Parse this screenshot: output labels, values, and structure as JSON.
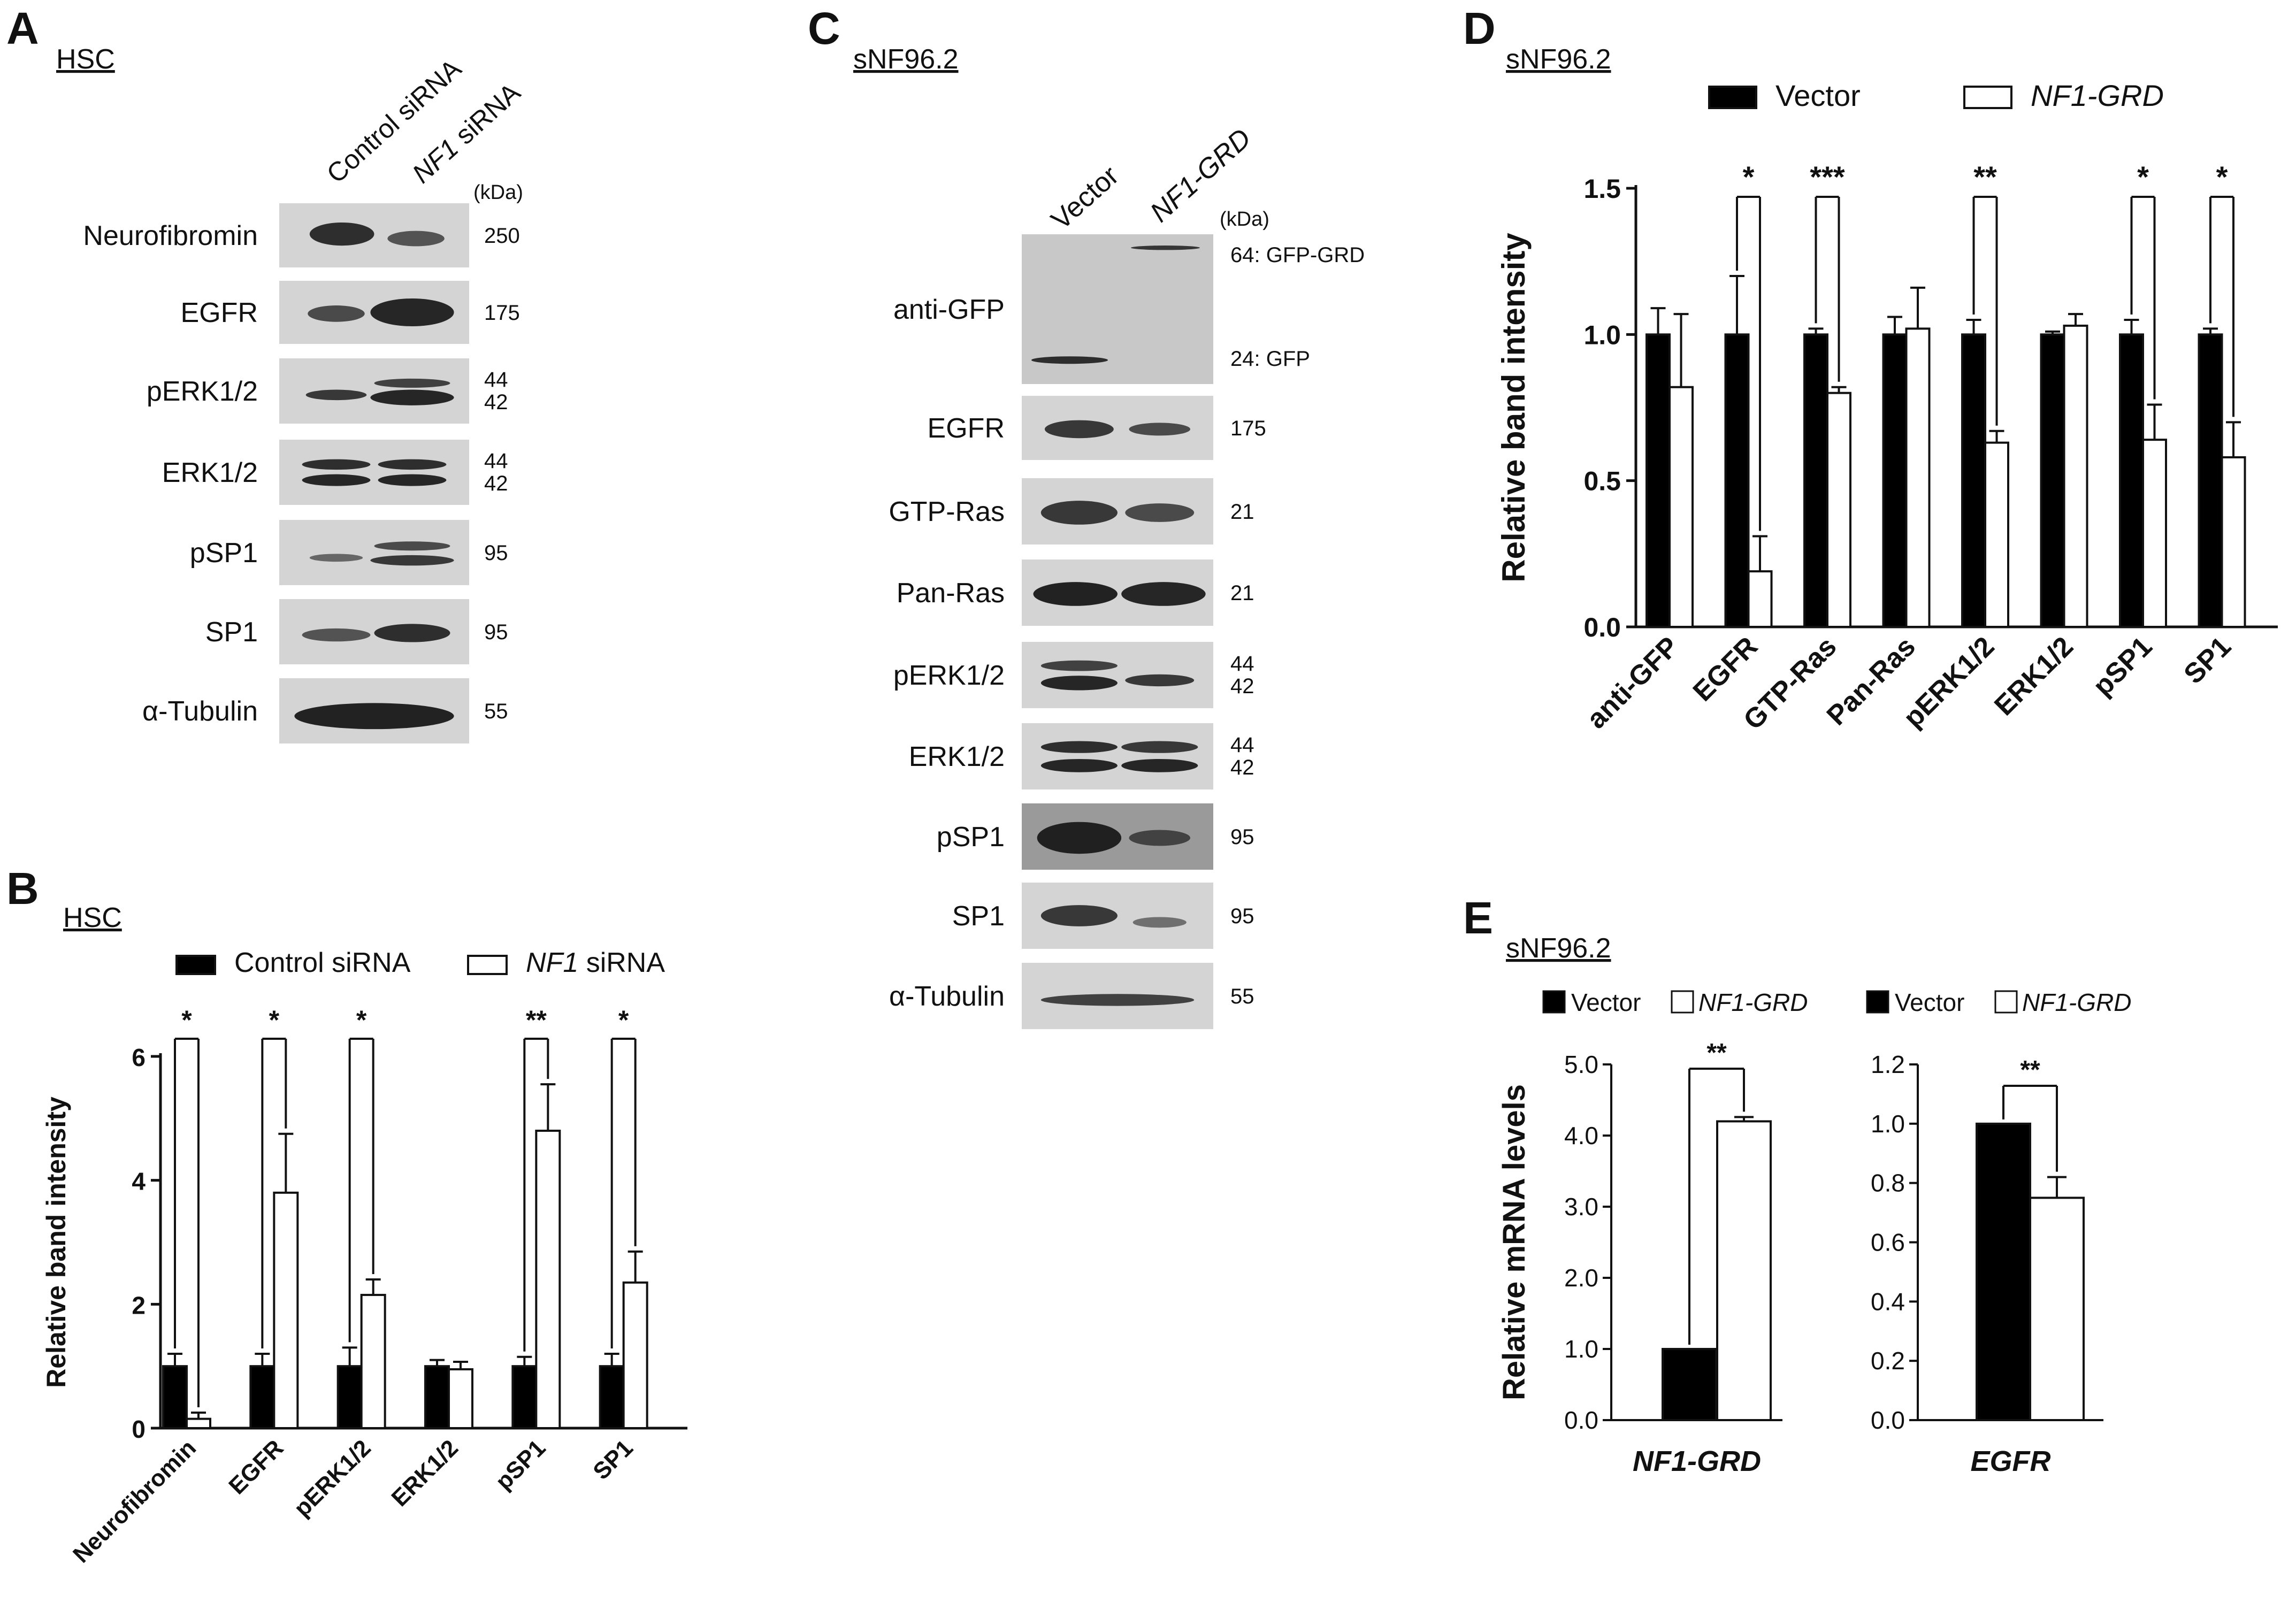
{
  "panels": {
    "A": {
      "letter": "A",
      "cell_line": "HSC",
      "lanes": [
        {
          "italic": "",
          "text": "Control siRNA"
        },
        {
          "italic": "NF1",
          "text": " siRNA"
        }
      ],
      "kda_header": "(kDa)",
      "rows": [
        {
          "label": "Neurofibromin",
          "kda": [
            "250"
          ]
        },
        {
          "label": "EGFR",
          "kda": [
            "175"
          ]
        },
        {
          "label": "pERK1/2",
          "kda": [
            "44",
            "42"
          ]
        },
        {
          "label": "ERK1/2",
          "kda": [
            "44",
            "42"
          ]
        },
        {
          "label": "pSP1",
          "kda": [
            "95"
          ]
        },
        {
          "label": "SP1",
          "kda": [
            "95"
          ]
        },
        {
          "label": "α-Tubulin",
          "kda": [
            "55"
          ]
        }
      ]
    },
    "C": {
      "letter": "C",
      "cell_line": "sNF96.2",
      "lanes": [
        {
          "italic": "",
          "text": "Vector"
        },
        {
          "italic": "NF1-GRD",
          "text": ""
        }
      ],
      "kda_header": "(kDa)",
      "rows": [
        {
          "label": "anti-GFP",
          "kda": [
            "64: GFP-GRD",
            "24: GFP"
          ]
        },
        {
          "label": "EGFR",
          "kda": [
            "175"
          ]
        },
        {
          "label": "GTP-Ras",
          "kda": [
            "21"
          ]
        },
        {
          "label": "Pan-Ras",
          "kda": [
            "21"
          ]
        },
        {
          "label": "pERK1/2",
          "kda": [
            "44",
            "42"
          ]
        },
        {
          "label": "ERK1/2",
          "kda": [
            "44",
            "42"
          ]
        },
        {
          "label": "pSP1",
          "kda": [
            "95"
          ]
        },
        {
          "label": "SP1",
          "kda": [
            "95"
          ]
        },
        {
          "label": "α-Tubulin",
          "kda": [
            "55"
          ]
        }
      ]
    }
  },
  "chart_data": [
    {
      "panel": "B",
      "cell_line": "HSC",
      "type": "bar",
      "ylabel": "Relative band intensity",
      "ylim": [
        0,
        6
      ],
      "yticks": [
        "0",
        "2",
        "4",
        "6"
      ],
      "categories": [
        "Neurofibromin",
        "EGFR",
        "pERK1/2",
        "ERK1/2",
        "pSP1",
        "SP1"
      ],
      "legend": [
        {
          "italic": "",
          "text": "Control siRNA"
        },
        {
          "italic": "NF1",
          "text": " siRNA"
        }
      ],
      "series": [
        {
          "values": [
            1.0,
            1.0,
            1.0,
            1.0,
            1.0,
            1.0
          ],
          "errors": [
            0.2,
            0.2,
            0.3,
            0.1,
            0.15,
            0.2
          ],
          "color": "#000000"
        },
        {
          "values": [
            0.15,
            3.8,
            2.15,
            0.95,
            4.8,
            2.35
          ],
          "errors": [
            0.1,
            0.95,
            0.25,
            0.12,
            0.75,
            0.5
          ],
          "color": "#ffffff"
        }
      ],
      "significance": [
        "*",
        "*",
        "*",
        "",
        "**",
        "*"
      ]
    },
    {
      "panel": "D",
      "cell_line": "sNF96.2",
      "type": "bar",
      "ylabel": "Relative band intensity",
      "ylim": [
        0,
        1.5
      ],
      "yticks": [
        "0.0",
        "0.5",
        "1.0",
        "1.5"
      ],
      "categories": [
        "anti-GFP",
        "EGFR",
        "GTP-Ras",
        "Pan-Ras",
        "pERK1/2",
        "ERK1/2",
        "pSP1",
        "SP1"
      ],
      "legend": [
        {
          "italic": "",
          "text": "Vector"
        },
        {
          "italic": "NF1-GRD",
          "text": ""
        }
      ],
      "series": [
        {
          "values": [
            1.0,
            1.0,
            1.0,
            1.0,
            1.0,
            1.0,
            1.0,
            1.0
          ],
          "errors": [
            0.09,
            0.2,
            0.02,
            0.06,
            0.05,
            0.01,
            0.05,
            0.02
          ],
          "color": "#000000"
        },
        {
          "values": [
            0.82,
            0.19,
            0.8,
            1.02,
            0.63,
            1.03,
            0.64,
            0.58
          ],
          "errors": [
            0.25,
            0.12,
            0.02,
            0.14,
            0.04,
            0.04,
            0.12,
            0.12
          ],
          "color": "#ffffff"
        }
      ],
      "significance": [
        "",
        "*",
        "***",
        "",
        "**",
        "",
        "*",
        "*"
      ]
    },
    {
      "panel": "E",
      "cell_line": "sNF96.2",
      "type": "bar",
      "ylabel": "Relative mRNA levels",
      "subcharts": [
        {
          "gene": "NF1-GRD",
          "ylim": [
            0,
            5
          ],
          "yticks": [
            "0.0",
            "1.0",
            "2.0",
            "3.0",
            "4.0",
            "5.0"
          ],
          "legend": [
            {
              "italic": "",
              "text": "Vector"
            },
            {
              "italic": "NF1-GRD",
              "text": ""
            }
          ],
          "values": [
            1.0,
            4.2
          ],
          "errors": [
            0,
            0.06
          ],
          "significance": "**"
        },
        {
          "gene": "EGFR",
          "ylim": [
            0,
            1.2
          ],
          "yticks": [
            "0.0",
            "0.2",
            "0.4",
            "0.6",
            "0.8",
            "1.0",
            "1.2"
          ],
          "legend": [
            {
              "italic": "",
              "text": "Vector"
            },
            {
              "italic": "NF1-GRD",
              "text": ""
            }
          ],
          "values": [
            1.0,
            0.75
          ],
          "errors": [
            0,
            0.07
          ],
          "significance": "**"
        }
      ]
    }
  ]
}
